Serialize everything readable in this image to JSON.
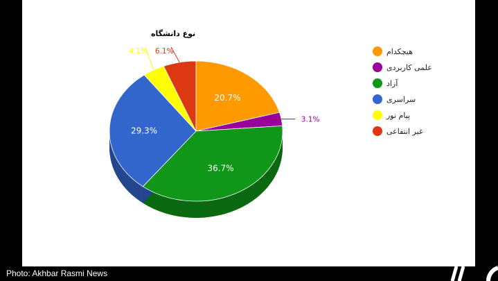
{
  "chart_data": {
    "type": "pie",
    "title": "نوع دانشگاه",
    "legend_position": "right",
    "three_d": true,
    "slices": [
      {
        "label": "هیچکدام",
        "value": 20.7,
        "display": "20.7%",
        "color": "#ff9900"
      },
      {
        "label": "علمی کاربردی",
        "value": 3.1,
        "display": "3.1%",
        "color": "#990099"
      },
      {
        "label": "آزاد",
        "value": 36.7,
        "display": "36.7%",
        "color": "#109618"
      },
      {
        "label": "سراسری",
        "value": 29.3,
        "display": "29.3%",
        "color": "#3366cc"
      },
      {
        "label": "پیام نور",
        "value": 4.1,
        "display": "4.1%",
        "color": "#ffff00"
      },
      {
        "label": "غیر انتفاعی",
        "value": 6.1,
        "display": "6.1%",
        "color": "#dc3912"
      }
    ]
  },
  "credit": "Photo: Akhbar Rasmi News"
}
